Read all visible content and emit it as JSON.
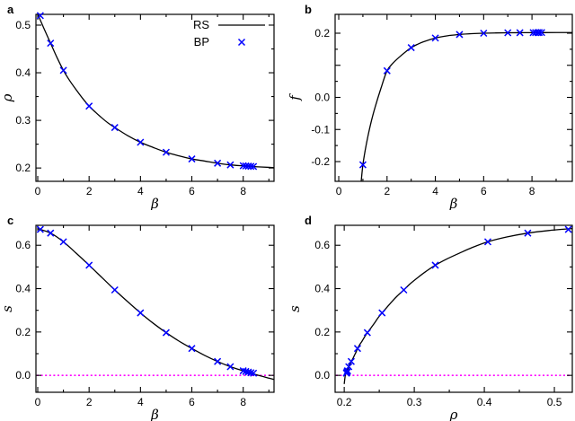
{
  "figure": {
    "background": "#ffffff",
    "legend": {
      "rs_label": "RS",
      "bp_label": "BP"
    }
  },
  "colors": {
    "frame": "#000000",
    "rs_line": "#000000",
    "bp_marker": "#0000ff",
    "zero_line": "#ff00ff"
  },
  "chart_data": [
    {
      "panel": "a",
      "type": "line",
      "xlabel": "β",
      "ylabel": "ρ",
      "xlim": [
        -0.07,
        9.2
      ],
      "ylim": [
        0.172,
        0.5226
      ],
      "xticks": [
        0,
        2,
        4,
        6,
        8
      ],
      "xtick_labels": [
        "0",
        "2",
        "4",
        "6",
        "8"
      ],
      "xminor": [
        1,
        3,
        5,
        7,
        9
      ],
      "yticks": [
        0.2,
        0.3,
        0.4,
        0.5
      ],
      "ytick_labels": [
        "0.2",
        "0.3",
        "0.4",
        "0.5"
      ],
      "yminor": [
        0.25,
        0.35,
        0.45
      ],
      "legend": [
        {
          "label": "RS",
          "marker": "line"
        },
        {
          "label": "BP",
          "marker": "cross"
        }
      ],
      "series": [
        {
          "name": "RS",
          "type": "line",
          "points": [
            [
              0,
              0.523
            ],
            [
              0.25,
              0.492
            ],
            [
              0.5,
              0.462
            ],
            [
              0.75,
              0.432
            ],
            [
              1,
              0.405
            ],
            [
              1.25,
              0.383
            ],
            [
              1.5,
              0.364
            ],
            [
              1.75,
              0.346
            ],
            [
              2,
              0.33
            ],
            [
              2.25,
              0.317
            ],
            [
              2.5,
              0.305
            ],
            [
              2.75,
              0.294
            ],
            [
              3,
              0.285
            ],
            [
              3.5,
              0.268
            ],
            [
              4,
              0.254
            ],
            [
              4.5,
              0.243
            ],
            [
              5,
              0.233
            ],
            [
              5.5,
              0.2255
            ],
            [
              6,
              0.219
            ],
            [
              6.5,
              0.2145
            ],
            [
              7,
              0.21
            ],
            [
              7.5,
              0.2065
            ],
            [
              8,
              0.2045
            ],
            [
              8.5,
              0.2027
            ],
            [
              9,
              0.2013
            ],
            [
              9.2,
              0.2008
            ]
          ]
        },
        {
          "name": "BP",
          "type": "cross",
          "points": [
            [
              0.1,
              0.52
            ],
            [
              0.5,
              0.462
            ],
            [
              1,
              0.405
            ],
            [
              2,
              0.33
            ],
            [
              3,
              0.285
            ],
            [
              4,
              0.254
            ],
            [
              5,
              0.233
            ],
            [
              6,
              0.219
            ],
            [
              7,
              0.21
            ],
            [
              7.5,
              0.2065
            ],
            [
              8.0,
              0.2047
            ],
            [
              8.1,
              0.2043
            ],
            [
              8.2,
              0.2039
            ],
            [
              8.3,
              0.2035
            ],
            [
              8.4,
              0.2031
            ]
          ]
        }
      ]
    },
    {
      "panel": "b",
      "type": "line",
      "xlabel": "β",
      "ylabel": "f",
      "xlim": [
        -0.15,
        9.67
      ],
      "ylim": [
        -0.2615,
        0.2587
      ],
      "xticks": [
        0,
        2,
        4,
        6,
        8
      ],
      "xtick_labels": [
        "0",
        "2",
        "4",
        "6",
        "8"
      ],
      "xminor": [
        1,
        3,
        5,
        7,
        9
      ],
      "yticks": [
        0.2,
        0.1,
        0.0,
        -0.1,
        -0.2
      ],
      "ytick_labels": [
        "0.2",
        "",
        "0.0",
        "-0.1",
        "-0.2"
      ],
      "yminor": [
        0.15,
        0.05,
        -0.05,
        -0.15
      ],
      "series": [
        {
          "name": "RS",
          "type": "line",
          "points": [
            [
              0.93,
              -0.2615
            ],
            [
              1,
              -0.21
            ],
            [
              1.1,
              -0.163
            ],
            [
              1.2,
              -0.124
            ],
            [
              1.35,
              -0.074
            ],
            [
              1.5,
              -0.032
            ],
            [
              1.75,
              0.029
            ],
            [
              2,
              0.083
            ],
            [
              2.25,
              0.107
            ],
            [
              2.5,
              0.125
            ],
            [
              2.75,
              0.141
            ],
            [
              3,
              0.155
            ],
            [
              3.25,
              0.165
            ],
            [
              3.5,
              0.173
            ],
            [
              4,
              0.185
            ],
            [
              4.5,
              0.192
            ],
            [
              5,
              0.196
            ],
            [
              5.5,
              0.1985
            ],
            [
              6,
              0.2
            ],
            [
              6.5,
              0.2008
            ],
            [
              7,
              0.2013
            ],
            [
              7.5,
              0.2016
            ],
            [
              8,
              0.2018
            ],
            [
              9,
              0.202
            ],
            [
              9.67,
              0.2021
            ]
          ]
        },
        {
          "name": "BP",
          "type": "cross",
          "points": [
            [
              1,
              -0.21
            ],
            [
              2,
              0.083
            ],
            [
              3,
              0.155
            ],
            [
              4,
              0.185
            ],
            [
              5,
              0.196
            ],
            [
              6,
              0.2
            ],
            [
              7,
              0.2013
            ],
            [
              7.5,
              0.2016
            ],
            [
              8.05,
              0.2018
            ],
            [
              8.15,
              0.2019
            ],
            [
              8.25,
              0.2019
            ],
            [
              8.3,
              0.202
            ],
            [
              8.4,
              0.202
            ]
          ]
        }
      ]
    },
    {
      "panel": "c",
      "type": "line",
      "xlabel": "β",
      "ylabel": "s",
      "xlim": [
        -0.07,
        9.2
      ],
      "ylim": [
        -0.078,
        0.692
      ],
      "xticks": [
        0,
        2,
        4,
        6,
        8
      ],
      "xtick_labels": [
        "0",
        "2",
        "4",
        "6",
        "8"
      ],
      "xminor": [
        1,
        3,
        5,
        7,
        9
      ],
      "yticks": [
        0.0,
        0.2,
        0.4,
        0.6
      ],
      "ytick_labels": [
        "0.0",
        "0.2",
        "0.4",
        "0.6"
      ],
      "yminor": [
        0.1,
        0.3,
        0.5
      ],
      "zero_line": {
        "y": 0
      },
      "series": [
        {
          "name": "RS",
          "type": "line",
          "points": [
            [
              0,
              0.676
            ],
            [
              0.5,
              0.656
            ],
            [
              1,
              0.616
            ],
            [
              1.5,
              0.563
            ],
            [
              2,
              0.508
            ],
            [
              2.5,
              0.451
            ],
            [
              3,
              0.394
            ],
            [
              3.5,
              0.34
            ],
            [
              4,
              0.288
            ],
            [
              4.5,
              0.24
            ],
            [
              5,
              0.197
            ],
            [
              5.5,
              0.158
            ],
            [
              6,
              0.124
            ],
            [
              6.5,
              0.092
            ],
            [
              7,
              0.064
            ],
            [
              7.5,
              0.04
            ],
            [
              8,
              0.021
            ],
            [
              8.5,
              0.003
            ],
            [
              9,
              -0.013
            ],
            [
              9.2,
              -0.019
            ]
          ]
        },
        {
          "name": "BP",
          "type": "cross",
          "points": [
            [
              0.1,
              0.673
            ],
            [
              0.5,
              0.656
            ],
            [
              1,
              0.616
            ],
            [
              2,
              0.508
            ],
            [
              3,
              0.394
            ],
            [
              4,
              0.288
            ],
            [
              5,
              0.197
            ],
            [
              6,
              0.124
            ],
            [
              7,
              0.064
            ],
            [
              7.5,
              0.04
            ],
            [
              8.0,
              0.021
            ],
            [
              8.1,
              0.018
            ],
            [
              8.2,
              0.015
            ],
            [
              8.3,
              0.012
            ],
            [
              8.4,
              0.01
            ]
          ]
        }
      ]
    },
    {
      "panel": "d",
      "type": "line",
      "xlabel": "ρ",
      "ylabel": "s",
      "xlim": [
        0.187,
        0.5256
      ],
      "ylim": [
        -0.078,
        0.692
      ],
      "xticks": [
        0.2,
        0.3,
        0.4,
        0.5
      ],
      "xtick_labels": [
        "0.2",
        "0.3",
        "0.4",
        "0.5"
      ],
      "xminor": [
        0.25,
        0.35,
        0.45
      ],
      "yticks": [
        0.0,
        0.2,
        0.4,
        0.6
      ],
      "ytick_labels": [
        "0.0",
        "0.2",
        "0.4",
        "0.6"
      ],
      "yminor": [
        0.1,
        0.3,
        0.5
      ],
      "zero_line": {
        "y": 0
      },
      "series": [
        {
          "name": "RS",
          "type": "line",
          "points": [
            [
              0.2,
              -0.04
            ],
            [
              0.2005,
              -0.025
            ],
            [
              0.201,
              -0.012
            ],
            [
              0.2015,
              0.0
            ],
            [
              0.2025,
              0.01
            ],
            [
              0.2035,
              0.018
            ],
            [
              0.2045,
              0.024
            ],
            [
              0.2055,
              0.032
            ],
            [
              0.2065,
              0.04
            ],
            [
              0.208,
              0.05
            ],
            [
              0.21,
              0.064
            ],
            [
              0.2125,
              0.078
            ],
            [
              0.2145,
              0.092
            ],
            [
              0.217,
              0.108
            ],
            [
              0.219,
              0.124
            ],
            [
              0.222,
              0.141
            ],
            [
              0.2255,
              0.158
            ],
            [
              0.229,
              0.177
            ],
            [
              0.233,
              0.197
            ],
            [
              0.238,
              0.218
            ],
            [
              0.243,
              0.24
            ],
            [
              0.248,
              0.264
            ],
            [
              0.254,
              0.288
            ],
            [
              0.261,
              0.314
            ],
            [
              0.268,
              0.34
            ],
            [
              0.276,
              0.367
            ],
            [
              0.285,
              0.394
            ],
            [
              0.294,
              0.422
            ],
            [
              0.305,
              0.451
            ],
            [
              0.317,
              0.48
            ],
            [
              0.33,
              0.508
            ],
            [
              0.346,
              0.536
            ],
            [
              0.364,
              0.563
            ],
            [
              0.383,
              0.59
            ],
            [
              0.405,
              0.616
            ],
            [
              0.432,
              0.638
            ],
            [
              0.462,
              0.656
            ],
            [
              0.492,
              0.668
            ],
            [
              0.5256,
              0.677
            ]
          ]
        },
        {
          "name": "BP",
          "type": "cross",
          "points": [
            [
              0.2031,
              0.01
            ],
            [
              0.2035,
              0.012
            ],
            [
              0.2039,
              0.015
            ],
            [
              0.2043,
              0.018
            ],
            [
              0.2047,
              0.021
            ],
            [
              0.2065,
              0.04
            ],
            [
              0.21,
              0.064
            ],
            [
              0.219,
              0.124
            ],
            [
              0.233,
              0.197
            ],
            [
              0.254,
              0.288
            ],
            [
              0.285,
              0.394
            ],
            [
              0.33,
              0.508
            ],
            [
              0.405,
              0.616
            ],
            [
              0.462,
              0.656
            ],
            [
              0.52,
              0.673
            ]
          ]
        }
      ]
    }
  ]
}
